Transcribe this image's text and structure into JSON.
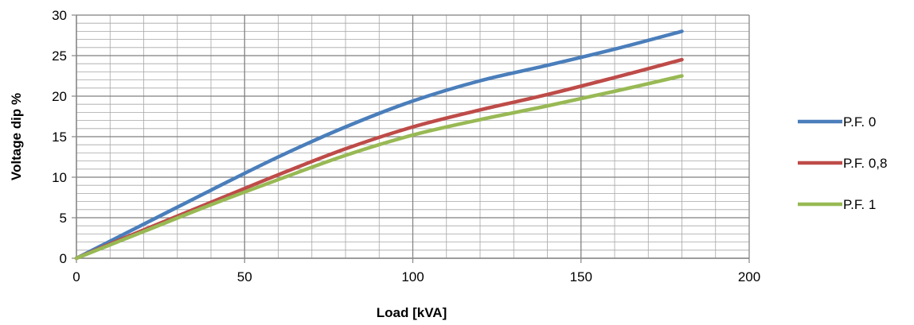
{
  "chart_data": {
    "type": "line",
    "title": "",
    "xlabel": "Load [kVA]",
    "ylabel": "Voltage dip %",
    "xlim": [
      0,
      200
    ],
    "ylim": [
      0,
      30
    ],
    "xticks": [
      0,
      50,
      100,
      150,
      200
    ],
    "yticks": [
      0,
      5,
      10,
      15,
      20,
      25,
      30
    ],
    "grid": true,
    "legend": "right",
    "series": [
      {
        "name": "P.F. 0",
        "color": "#4a7ebb",
        "x": [
          0,
          20,
          40,
          60,
          80,
          100,
          120,
          140,
          160,
          180
        ],
        "y": [
          0,
          4.2,
          8.4,
          12.5,
          16.2,
          19.4,
          21.9,
          23.8,
          25.8,
          28.0
        ]
      },
      {
        "name": "P.F. 0,8",
        "color": "#be4b48",
        "x": [
          0,
          20,
          40,
          60,
          80,
          100,
          120,
          140,
          160,
          180
        ],
        "y": [
          0,
          3.5,
          6.9,
          10.3,
          13.5,
          16.2,
          18.3,
          20.2,
          22.3,
          24.5
        ]
      },
      {
        "name": "P.F. 1",
        "color": "#98b954",
        "x": [
          0,
          20,
          40,
          60,
          80,
          100,
          120,
          140,
          160,
          180
        ],
        "y": [
          0,
          3.3,
          6.6,
          9.7,
          12.7,
          15.2,
          17.1,
          18.8,
          20.6,
          22.5
        ]
      }
    ]
  }
}
